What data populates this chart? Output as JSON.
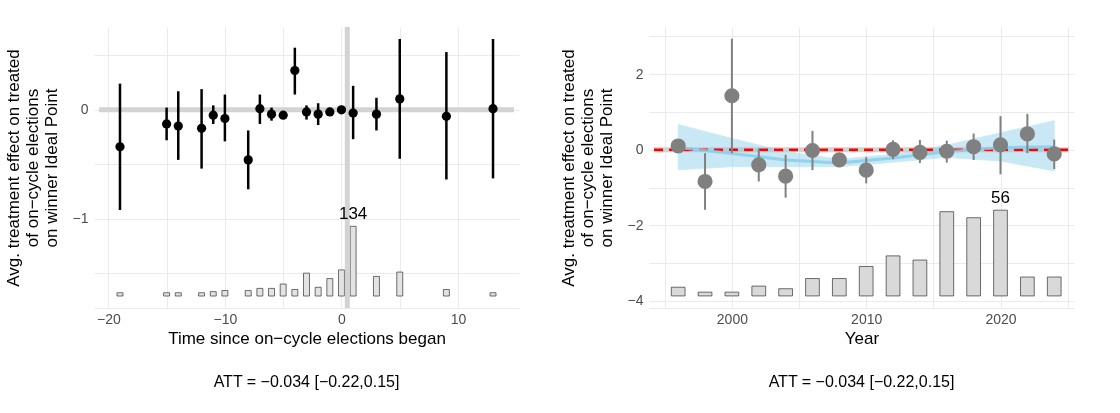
{
  "chart_data": [
    {
      "type": "scatter",
      "xlabel": "Time since on−cycle elections began",
      "ylabel": "Avg. treatment effect on treated\nof on−cycle elections\non winner Ideal Point",
      "xlim": [
        -20.8,
        14.8
      ],
      "ylim": [
        -1.82,
        0.76
      ],
      "xticks": [
        -20,
        {
          "value": -15,
          "label": null
        },
        -10,
        {
          "value": -5,
          "label": null
        },
        0,
        {
          "value": 5,
          "label": null
        },
        10
      ],
      "yticks": [
        {
          "value": -1.5,
          "label": null
        },
        -1,
        {
          "value": -0.5,
          "label": null
        },
        0,
        {
          "value": 0.5,
          "label": null
        }
      ],
      "grid": true,
      "series": [
        {
          "type": "bar",
          "color": "#e3e3e3",
          "x": [
            -19,
            -15,
            -14,
            -12,
            -11,
            -10,
            -8,
            -7,
            -6,
            -5,
            -4,
            -3,
            -2,
            -1,
            0,
            1,
            3,
            5,
            9,
            13
          ],
          "base": [
            -1.71,
            -1.71,
            -1.71,
            -1.71,
            -1.71,
            -1.71,
            -1.71,
            -1.71,
            -1.71,
            -1.71,
            -1.71,
            -1.71,
            -1.71,
            -1.71,
            -1.71,
            -1.71,
            -1.71,
            -1.71,
            -1.71,
            -1.71
          ],
          "values": [
            0.03,
            0.03,
            0.03,
            0.03,
            0.04,
            0.05,
            0.05,
            0.07,
            0.07,
            0.11,
            0.06,
            0.21,
            0.08,
            0.16,
            0.24,
            0.64,
            0.18,
            0.22,
            0.06,
            0.03
          ]
        },
        {
          "marker": "circle",
          "color": "#000000",
          "x": [
            -19,
            -15,
            -14,
            -12,
            -11,
            -10,
            -8,
            -7,
            -6,
            -5,
            -4,
            -3,
            -2,
            -1,
            0,
            1,
            3,
            5,
            9,
            13
          ],
          "values": [
            -0.34,
            -0.13,
            -0.15,
            -0.17,
            -0.05,
            -0.08,
            -0.46,
            0.01,
            -0.04,
            -0.05,
            0.36,
            -0.02,
            -0.04,
            -0.02,
            0.0,
            -0.03,
            -0.04,
            0.1,
            -0.06,
            0.01
          ],
          "errors": [
            [
              -0.92,
              0.24
            ],
            [
              -0.28,
              0.02
            ],
            [
              -0.46,
              0.17
            ],
            [
              -0.54,
              0.19
            ],
            [
              -0.13,
              0.04
            ],
            [
              -0.29,
              0.14
            ],
            [
              -0.73,
              -0.19
            ],
            [
              -0.13,
              0.14
            ],
            [
              -0.1,
              0.02
            ],
            null,
            [
              0.14,
              0.57
            ],
            [
              -0.09,
              0.04
            ],
            [
              -0.14,
              0.06
            ],
            null,
            null,
            [
              -0.27,
              0.22
            ],
            [
              -0.19,
              0.11
            ],
            [
              -0.45,
              0.65
            ],
            [
              -0.64,
              0.53
            ],
            [
              -0.63,
              0.65
            ]
          ]
        }
      ],
      "ref_lines": [
        {
          "axis": "y",
          "value": 0,
          "color": "#d3d3d3"
        },
        {
          "axis": "x",
          "value": 0.5,
          "color": "#d3d3d3"
        }
      ],
      "annotations": [
        {
          "text": "134",
          "x": 1,
          "y": -1.07
        },
        "ATT = −0.034 [−0.22,0.15]"
      ]
    },
    {
      "type": "scatter",
      "xlabel": "Year",
      "ylabel": "Avg. treatment effect on treated\nof on−cycle elections\non winner Ideal Point",
      "xlim": [
        1994.2,
        2025.1
      ],
      "ylim": [
        -4.19,
        3.25
      ],
      "xticks": [
        {
          "value": 1995,
          "label": null
        },
        2000,
        {
          "value": 2005,
          "label": null
        },
        2010,
        {
          "value": 2015,
          "label": null
        },
        2020,
        {
          "value": 2025,
          "label": null
        }
      ],
      "yticks": [
        -4,
        {
          "value": -3,
          "label": null
        },
        -2,
        {
          "value": -1,
          "label": null
        },
        0,
        {
          "value": 1,
          "label": null
        },
        2,
        {
          "value": 3,
          "label": null
        }
      ],
      "grid": true,
      "series": [
        {
          "type": "bar",
          "color": "#d9d9d9",
          "x": [
            1996,
            1998,
            2000,
            2002,
            2004,
            2006,
            2008,
            2010,
            2012,
            2014,
            2016,
            2018,
            2020,
            2022,
            2024
          ],
          "base": [
            -3.87,
            -3.87,
            -3.87,
            -3.87,
            -3.87,
            -3.87,
            -3.87,
            -3.87,
            -3.87,
            -3.87,
            -3.87,
            -3.87,
            -3.87,
            -3.87,
            -3.87
          ],
          "values": [
            0.23,
            0.1,
            0.1,
            0.26,
            0.19,
            0.46,
            0.46,
            0.78,
            1.06,
            0.95,
            2.23,
            2.07,
            2.27,
            0.5,
            0.5
          ]
        },
        {
          "type": "line",
          "color": "#87ceeb",
          "x": [
            1996,
            2000,
            2004,
            2008,
            2012,
            2016,
            2020,
            2024
          ],
          "values": [
            0.06,
            -0.1,
            -0.27,
            -0.35,
            -0.22,
            -0.05,
            0.06,
            0.08
          ],
          "lower": [
            -0.53,
            -0.45,
            -0.45,
            -0.45,
            -0.33,
            -0.2,
            -0.3,
            -0.56
          ],
          "upper": [
            0.67,
            0.3,
            -0.05,
            -0.25,
            -0.12,
            0.12,
            0.45,
            0.77
          ]
        },
        {
          "marker": "circle",
          "color": "#808080",
          "x": [
            1996,
            1998,
            2000,
            2002,
            2004,
            2006,
            2008,
            2010,
            2012,
            2014,
            2016,
            2018,
            2020,
            2022,
            2024
          ],
          "values": [
            0.1,
            -0.84,
            1.43,
            -0.4,
            -0.7,
            -0.02,
            -0.27,
            -0.54,
            0.01,
            -0.07,
            -0.04,
            0.08,
            0.13,
            0.42,
            -0.11
          ],
          "errors": [
            null,
            [
              -1.59,
              -0.09
            ],
            [
              -0.09,
              2.94
            ],
            [
              -0.84,
              0.03
            ],
            [
              -1.27,
              -0.13
            ],
            [
              -0.54,
              0.5
            ],
            null,
            [
              -0.89,
              -0.2
            ],
            [
              -0.25,
              0.25
            ],
            [
              -0.35,
              0.26
            ],
            [
              -0.34,
              0.24
            ],
            [
              -0.27,
              0.43
            ],
            [
              -0.65,
              0.89
            ],
            [
              -0.09,
              0.95
            ],
            [
              -0.51,
              0.27
            ]
          ]
        }
      ],
      "ref_lines": [
        {
          "axis": "y",
          "value": 0,
          "color": "#d3d3d3"
        },
        {
          "axis": "y",
          "value": 0,
          "color": "#ff0000",
          "line_style": "dashed"
        }
      ],
      "annotations": [
        {
          "text": "56",
          "x": 2020,
          "y": -1.6
        },
        "ATT = −0.034 [−0.22,0.15]"
      ]
    }
  ]
}
